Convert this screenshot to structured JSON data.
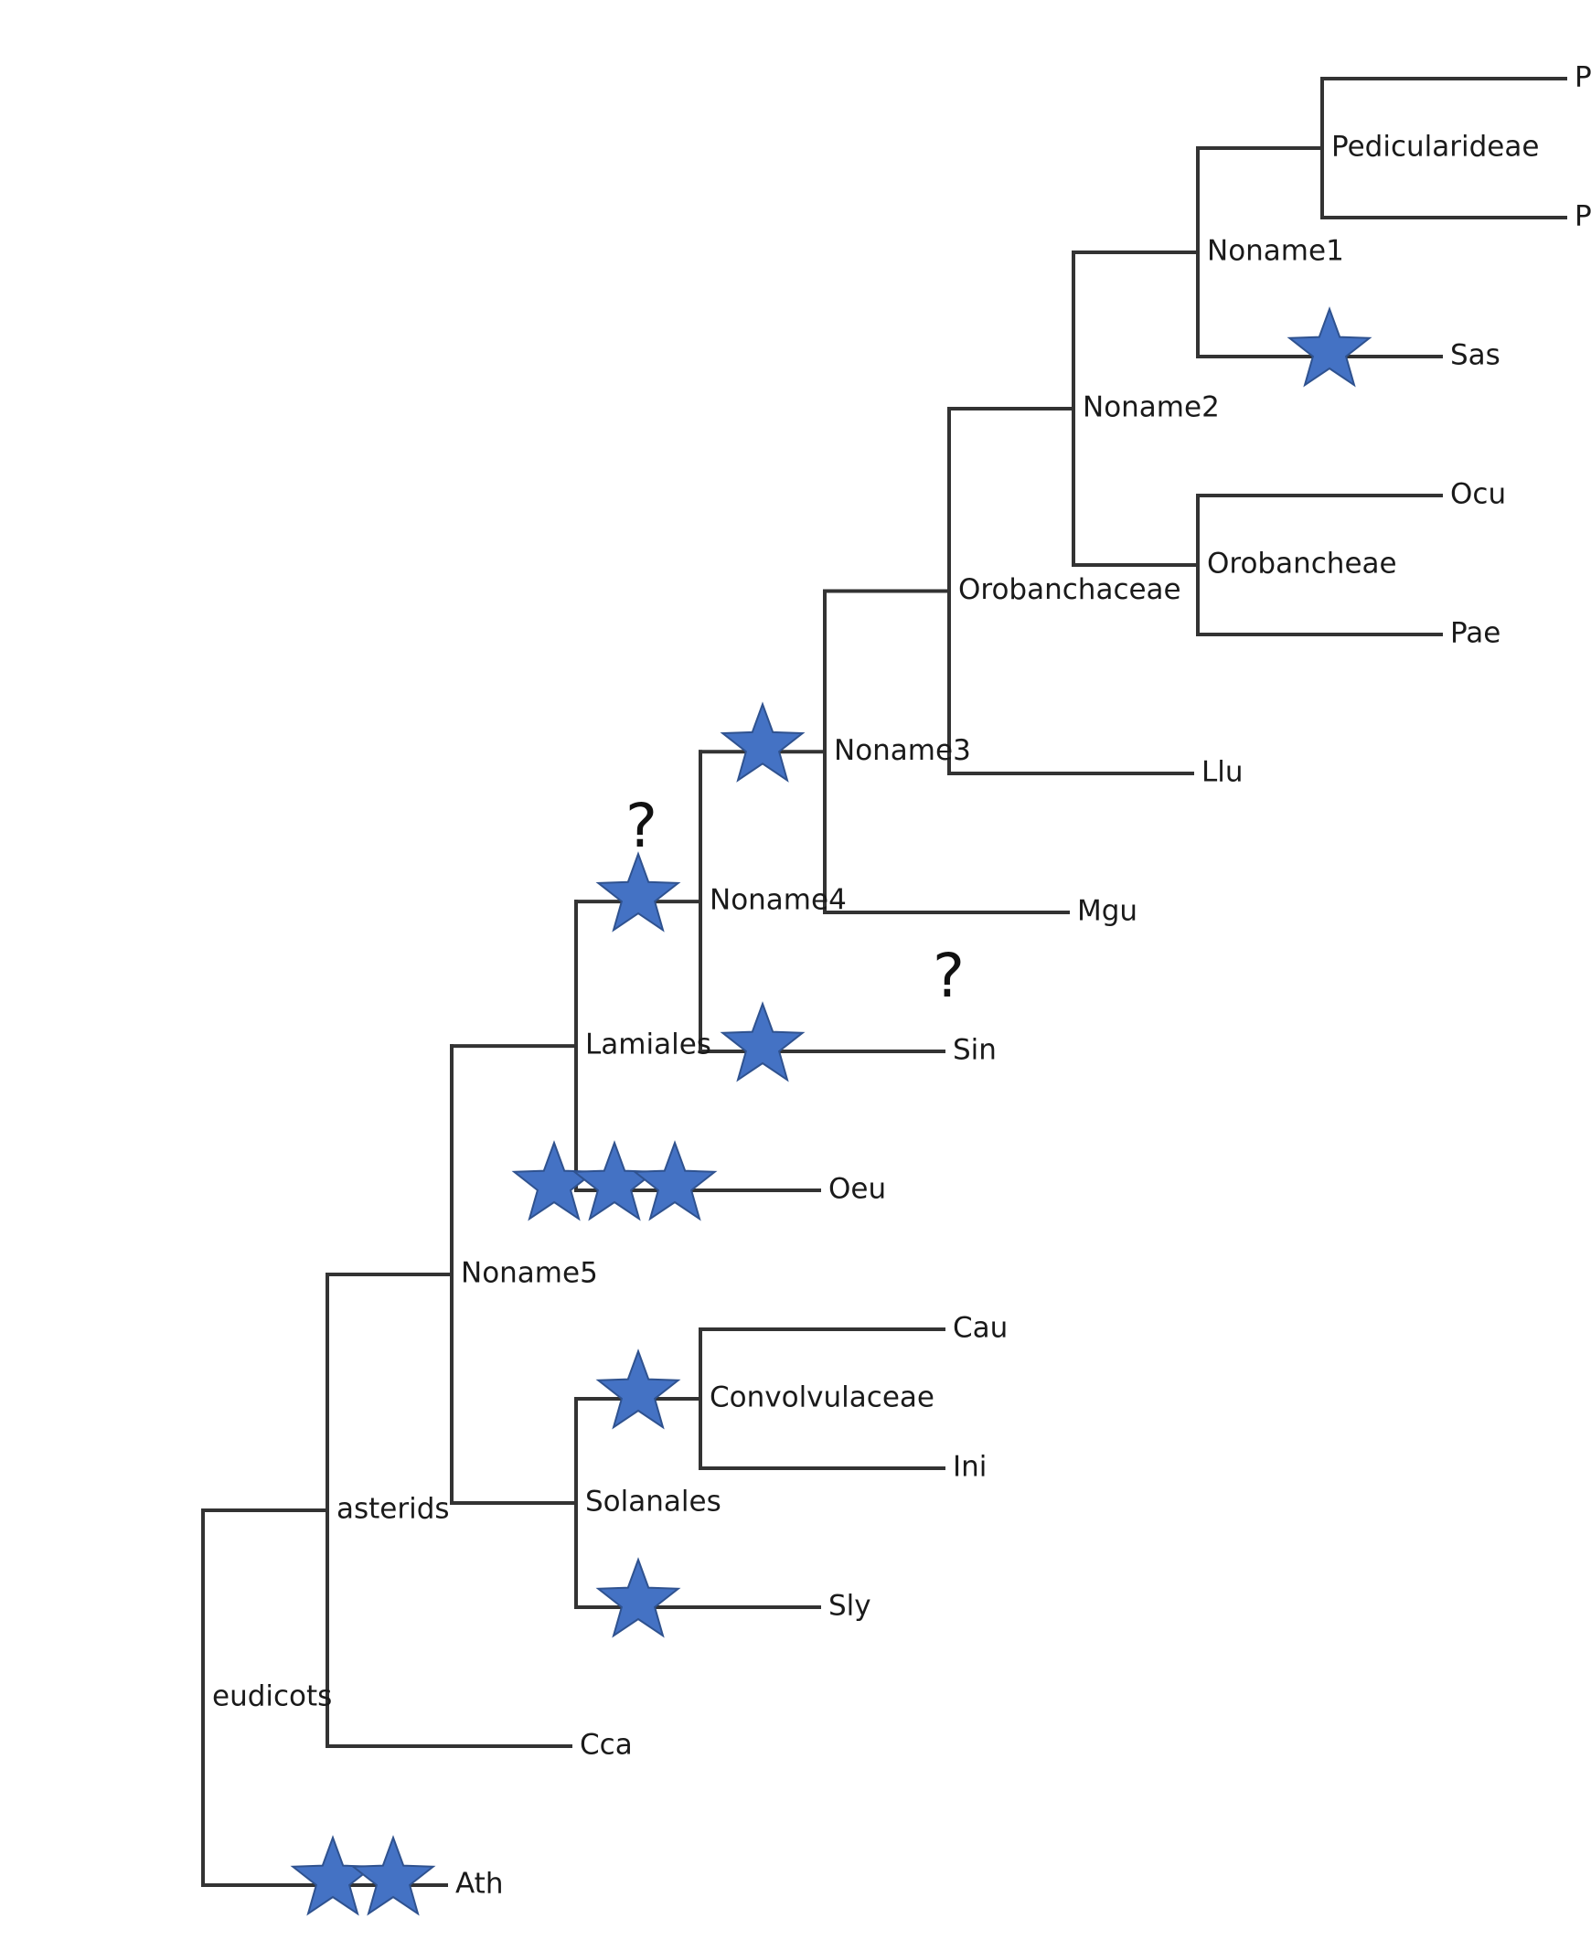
{
  "diagram": {
    "title": "",
    "colors": {
      "branch": "#333333",
      "star_fill": "#4472C4",
      "star_stroke": "#2F528F"
    },
    "tree": {
      "id": "root",
      "label": "eudicots",
      "children": [
        {
          "id": "asterids",
          "label": "asterids",
          "children": [
            {
              "id": "noname5",
              "label": "Noname5",
              "children": [
                {
                  "id": "lamiales",
                  "label": "Lamiales",
                  "children": [
                    {
                      "id": "noname4",
                      "label": "Noname4",
                      "children": [
                        {
                          "id": "noname3",
                          "label": "Noname3",
                          "children": [
                            {
                              "id": "orobanchaceae",
                              "label": "Orobanchaceae",
                              "children": [
                                {
                                  "id": "noname2",
                                  "label": "Noname2",
                                  "children": [
                                    {
                                      "id": "noname1",
                                      "label": "Noname1",
                                      "children": [
                                        {
                                          "id": "pedicularideae",
                                          "label": "Pedicularideae",
                                          "children": [
                                            {
                                              "id": "pcr",
                                              "label": "Pcr"
                                            },
                                            {
                                              "id": "pja",
                                              "label": "Pja"
                                            }
                                          ]
                                        },
                                        {
                                          "id": "sas",
                                          "label": "Sas"
                                        }
                                      ]
                                    },
                                    {
                                      "id": "orobancheae",
                                      "label": "Orobancheae",
                                      "children": [
                                        {
                                          "id": "ocu",
                                          "label": "Ocu"
                                        },
                                        {
                                          "id": "pae",
                                          "label": "Pae"
                                        }
                                      ]
                                    }
                                  ]
                                },
                                {
                                  "id": "llu",
                                  "label": "Llu"
                                }
                              ]
                            },
                            {
                              "id": "mgu",
                              "label": "Mgu"
                            }
                          ]
                        },
                        {
                          "id": "sin",
                          "label": "Sin"
                        }
                      ]
                    },
                    {
                      "id": "oeu",
                      "label": "Oeu"
                    }
                  ]
                },
                {
                  "id": "solanales",
                  "label": "Solanales",
                  "children": [
                    {
                      "id": "convolvulaceae",
                      "label": "Convolvulaceae",
                      "children": [
                        {
                          "id": "cau",
                          "label": "Cau"
                        },
                        {
                          "id": "ini",
                          "label": "Ini"
                        }
                      ]
                    },
                    {
                      "id": "sly",
                      "label": "Sly"
                    }
                  ]
                }
              ]
            },
            {
              "id": "cca",
              "label": "Cca"
            }
          ]
        },
        {
          "id": "ath",
          "label": "Ath"
        }
      ]
    },
    "star_counts": {
      "sas": 1,
      "noname3": 1,
      "noname4": 1,
      "sin": 1,
      "oeu": 3,
      "convolvulaceae": 1,
      "sly": 1,
      "ath": 2
    },
    "question_marks": [
      {
        "node": "noname4",
        "text": "?"
      },
      {
        "node": "sin",
        "text": "?"
      }
    ]
  }
}
